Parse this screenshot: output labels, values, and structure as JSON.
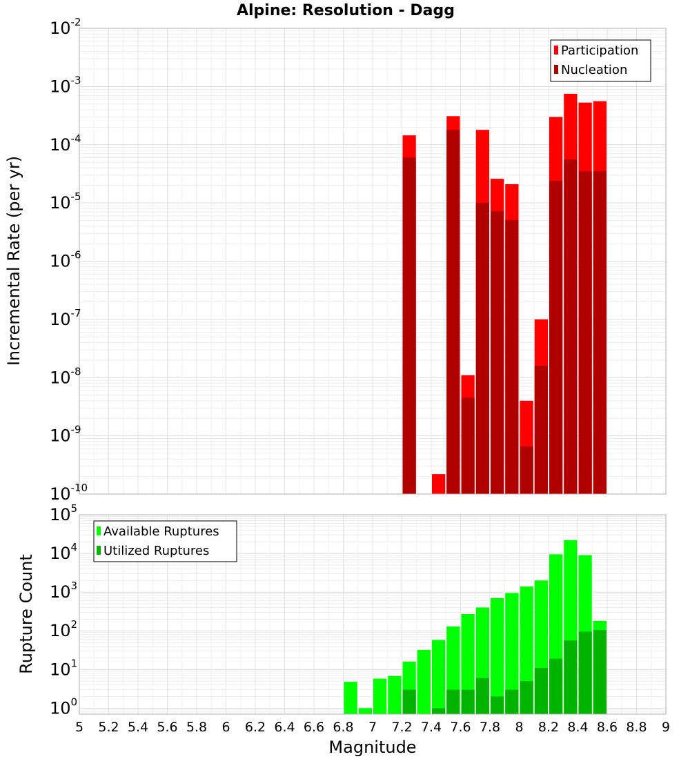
{
  "chart_data": [
    {
      "type": "bar",
      "title": "Alpine: Resolution - Dagg",
      "xlabel": "Magnitude",
      "ylabel": "Incremental Rate (per yr)",
      "xlim": [
        5,
        9
      ],
      "ylim": [
        1e-10,
        0.01
      ],
      "yscale": "log",
      "grid": true,
      "legend_position": "top-right",
      "y_tick_labels": [
        {
          "base": "10",
          "exp": "-10"
        },
        {
          "base": "10",
          "exp": "-9"
        },
        {
          "base": "10",
          "exp": "-8"
        },
        {
          "base": "10",
          "exp": "-7"
        },
        {
          "base": "10",
          "exp": "-6"
        },
        {
          "base": "10",
          "exp": "-5"
        },
        {
          "base": "10",
          "exp": "-4"
        },
        {
          "base": "10",
          "exp": "-3"
        },
        {
          "base": "10",
          "exp": "-2"
        }
      ],
      "x": [
        7.25,
        7.45,
        7.55,
        7.65,
        7.75,
        7.85,
        7.95,
        8.05,
        8.15,
        8.25,
        8.35,
        8.45,
        8.55
      ],
      "series": [
        {
          "name": "Participation",
          "color": "#ff0000",
          "values": [
            0.000145,
            2.2e-10,
            0.00031,
            1.1e-08,
            0.00018,
            2.6e-05,
            2.1e-05,
            4e-09,
            1e-07,
            0.0003,
            0.00075,
            0.00053,
            0.00056
          ]
        },
        {
          "name": "Nucleation",
          "color": "#b00000",
          "values": [
            6e-05,
            null,
            0.00018,
            4.5e-09,
            1e-05,
            7.2e-06,
            5.1e-06,
            6.6e-10,
            1.6e-08,
            2.4e-05,
            5.6e-05,
            3.5e-05,
            3.5e-05
          ]
        }
      ]
    },
    {
      "type": "bar",
      "xlabel": "Magnitude",
      "ylabel": "Rupture Count",
      "xlim": [
        5,
        9
      ],
      "ylim": [
        0.7,
        100000
      ],
      "yscale": "log",
      "grid": true,
      "legend_position": "top-left",
      "y_tick_labels": [
        {
          "base": "10",
          "exp": "0"
        },
        {
          "base": "10",
          "exp": "1"
        },
        {
          "base": "10",
          "exp": "2"
        },
        {
          "base": "10",
          "exp": "3"
        },
        {
          "base": "10",
          "exp": "4"
        },
        {
          "base": "10",
          "exp": "5"
        }
      ],
      "x_tick_labels": [
        "5",
        "5.2",
        "5.4",
        "5.6",
        "5.8",
        "6",
        "6.2",
        "6.4",
        "6.6",
        "6.8",
        "7",
        "7.2",
        "7.4",
        "7.6",
        "7.8",
        "8",
        "8.2",
        "8.4",
        "8.6",
        "8.8",
        "9"
      ],
      "x": [
        6.85,
        6.95,
        7.05,
        7.15,
        7.25,
        7.35,
        7.45,
        7.55,
        7.65,
        7.75,
        7.85,
        7.95,
        8.05,
        8.15,
        8.25,
        8.35,
        8.45,
        8.55
      ],
      "series": [
        {
          "name": "Available Ruptures",
          "color": "#00ff00",
          "values": [
            4.8,
            1,
            5.8,
            6.8,
            16,
            32,
            58,
            130,
            270,
            400,
            700,
            950,
            1400,
            2000,
            9500,
            22000,
            9000,
            180
          ]
        },
        {
          "name": "Utilized Ruptures",
          "color": "#00b400",
          "values": [
            null,
            null,
            null,
            null,
            3,
            null,
            1,
            3,
            3,
            6,
            2,
            3,
            5,
            11,
            19,
            56,
            95,
            105
          ]
        }
      ]
    }
  ]
}
